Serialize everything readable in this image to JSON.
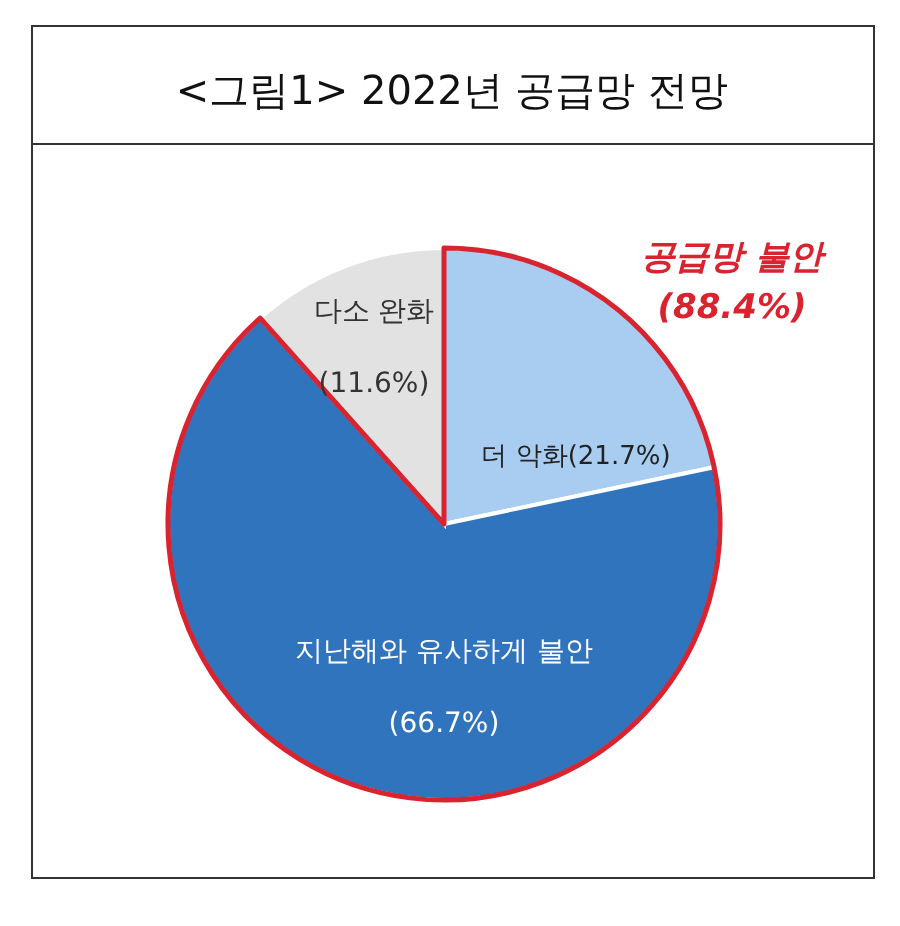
{
  "chart_data": {
    "type": "pie",
    "title": "<그림1> 2022년 공급망 전망",
    "categories": [
      "더 악화",
      "지난해와 유사하게 불안",
      "다소 완화"
    ],
    "values": [
      21.7,
      66.7,
      11.6
    ],
    "value_labels": [
      "(21.7%)",
      "(66.7%)",
      "(11.6%)"
    ],
    "colors": [
      "#a9cdf0",
      "#2f74bd",
      "#e2e2e2"
    ],
    "annotations": [
      "공급망 불안",
      "(88.4%)"
    ]
  }
}
